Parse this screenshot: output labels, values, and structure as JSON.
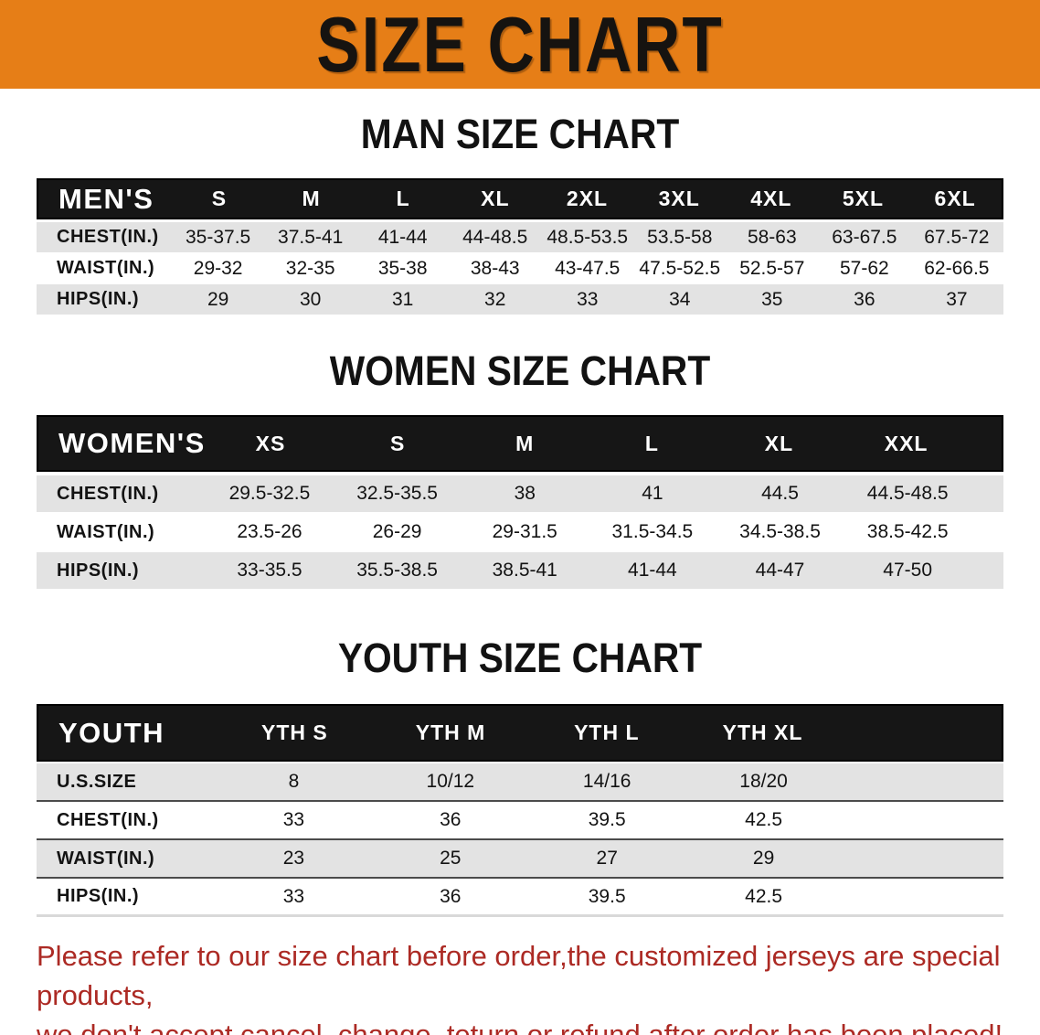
{
  "banner": {
    "title": "SIZE CHART"
  },
  "colors": {
    "banner_bg": "#E67E17",
    "header_band_bg": "#161616",
    "row_alt_bg": "#E3E3E3",
    "footer_text": "#AC2A24"
  },
  "men": {
    "title": "MAN SIZE CHART",
    "header": [
      "MEN'S",
      "S",
      "M",
      "L",
      "XL",
      "2XL",
      "3XL",
      "4XL",
      "5XL",
      "6XL"
    ],
    "rows": [
      [
        "CHEST(IN.)",
        "35-37.5",
        "37.5-41",
        "41-44",
        "44-48.5",
        "48.5-53.5",
        "53.5-58",
        "58-63",
        "63-67.5",
        "67.5-72"
      ],
      [
        "WAIST(IN.)",
        "29-32",
        "32-35",
        "35-38",
        "38-43",
        "43-47.5",
        "47.5-52.5",
        "52.5-57",
        "57-62",
        "62-66.5"
      ],
      [
        "HIPS(IN.)",
        "29",
        "30",
        "31",
        "32",
        "33",
        "34",
        "35",
        "36",
        "37"
      ]
    ]
  },
  "women": {
    "title": "WOMEN SIZE CHART",
    "header": [
      "WOMEN'S",
      "XS",
      "S",
      "M",
      "L",
      "XL",
      "XXL"
    ],
    "rows": [
      [
        "CHEST(IN.)",
        "29.5-32.5",
        "32.5-35.5",
        "38",
        "41",
        "44.5",
        "44.5-48.5"
      ],
      [
        "WAIST(IN.)",
        "23.5-26",
        "26-29",
        "29-31.5",
        "31.5-34.5",
        "34.5-38.5",
        "38.5-42.5"
      ],
      [
        "HIPS(IN.)",
        "33-35.5",
        "35.5-38.5",
        "38.5-41",
        "41-44",
        "44-47",
        "47-50"
      ]
    ]
  },
  "youth": {
    "title": "YOUTH SIZE CHART",
    "header": [
      "YOUTH",
      "YTH S",
      "YTH M",
      "YTH L",
      "YTH XL"
    ],
    "rows": [
      [
        "U.S.SIZE",
        "8",
        "10/12",
        "14/16",
        "18/20"
      ],
      [
        "CHEST(IN.)",
        "33",
        "36",
        "39.5",
        "42.5"
      ],
      [
        "WAIST(IN.)",
        "23",
        "25",
        "27",
        "29"
      ],
      [
        "HIPS(IN.)",
        "33",
        "36",
        "39.5",
        "42.5"
      ]
    ]
  },
  "footer": {
    "line1": "Please refer to our size chart before order,the customized jerseys are special products,",
    "line2": "we don't accept cancel, change, teturn or refund after order has been placed!"
  }
}
